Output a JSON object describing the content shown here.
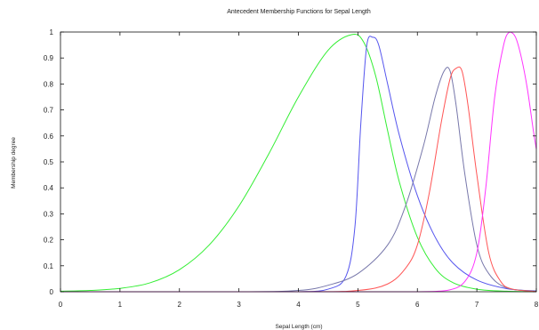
{
  "chart_data": {
    "type": "line",
    "title": "Antecedent Membership Functions for Sepal Length",
    "xlabel": "Sepal Length (cm)",
    "ylabel": "Membership degree",
    "xlim": [
      0,
      8
    ],
    "ylim": [
      0,
      1
    ],
    "x_ticks": [
      "0",
      "1",
      "2",
      "3",
      "4",
      "5",
      "6",
      "7",
      "8"
    ],
    "y_ticks": [
      "0",
      "0.1",
      "0.2",
      "0.3",
      "0.4",
      "0.5",
      "0.6",
      "0.7",
      "0.8",
      "0.9",
      "1"
    ],
    "grid": false,
    "legend": "none",
    "series": [
      {
        "color": "#33ee33",
        "x": [
          0,
          0.5,
          1,
          1.5,
          2,
          2.5,
          3,
          3.5,
          4,
          4.5,
          4.9,
          5.1,
          5.3,
          5.5,
          5.7,
          6,
          6.3,
          6.6,
          7,
          7.5,
          8
        ],
        "y": [
          0.002,
          0.005,
          0.013,
          0.034,
          0.085,
          0.18,
          0.33,
          0.53,
          0.75,
          0.93,
          0.99,
          0.96,
          0.83,
          0.62,
          0.42,
          0.21,
          0.09,
          0.035,
          0.01,
          0.002,
          0.0005
        ]
      },
      {
        "color": "#5555ee",
        "x": [
          0,
          3,
          4,
          4.5,
          4.8,
          4.95,
          5.05,
          5.15,
          5.25,
          5.35,
          5.5,
          5.7,
          6,
          6.3,
          6.6,
          7,
          7.5,
          8
        ],
        "y": [
          0,
          0,
          0,
          0.01,
          0.06,
          0.25,
          0.65,
          0.95,
          0.98,
          0.95,
          0.8,
          0.6,
          0.37,
          0.21,
          0.11,
          0.045,
          0.012,
          0.003
        ]
      },
      {
        "color": "#7777aa",
        "x": [
          0,
          3,
          4,
          4.5,
          5,
          5.5,
          5.8,
          6.1,
          6.3,
          6.45,
          6.55,
          6.65,
          6.8,
          7,
          7.2,
          7.5,
          8
        ],
        "y": [
          0,
          0,
          0.005,
          0.025,
          0.07,
          0.18,
          0.33,
          0.56,
          0.75,
          0.85,
          0.85,
          0.72,
          0.45,
          0.18,
          0.07,
          0.015,
          0.002
        ]
      },
      {
        "color": "#ff5555",
        "x": [
          0,
          4,
          5,
          5.5,
          5.8,
          6,
          6.2,
          6.4,
          6.55,
          6.65,
          6.75,
          6.85,
          7,
          7.2,
          7.4,
          7.6,
          8
        ],
        "y": [
          0,
          0,
          0.005,
          0.03,
          0.09,
          0.18,
          0.38,
          0.65,
          0.82,
          0.86,
          0.85,
          0.72,
          0.45,
          0.15,
          0.04,
          0.01,
          0.001
        ]
      },
      {
        "color": "#ff33ff",
        "x": [
          0,
          5,
          6,
          6.5,
          6.8,
          7,
          7.15,
          7.3,
          7.45,
          7.55,
          7.65,
          7.75,
          7.85,
          7.95,
          8
        ],
        "y": [
          0,
          0,
          0,
          0.005,
          0.04,
          0.15,
          0.4,
          0.75,
          0.95,
          1.0,
          0.98,
          0.9,
          0.78,
          0.62,
          0.55
        ]
      }
    ]
  }
}
